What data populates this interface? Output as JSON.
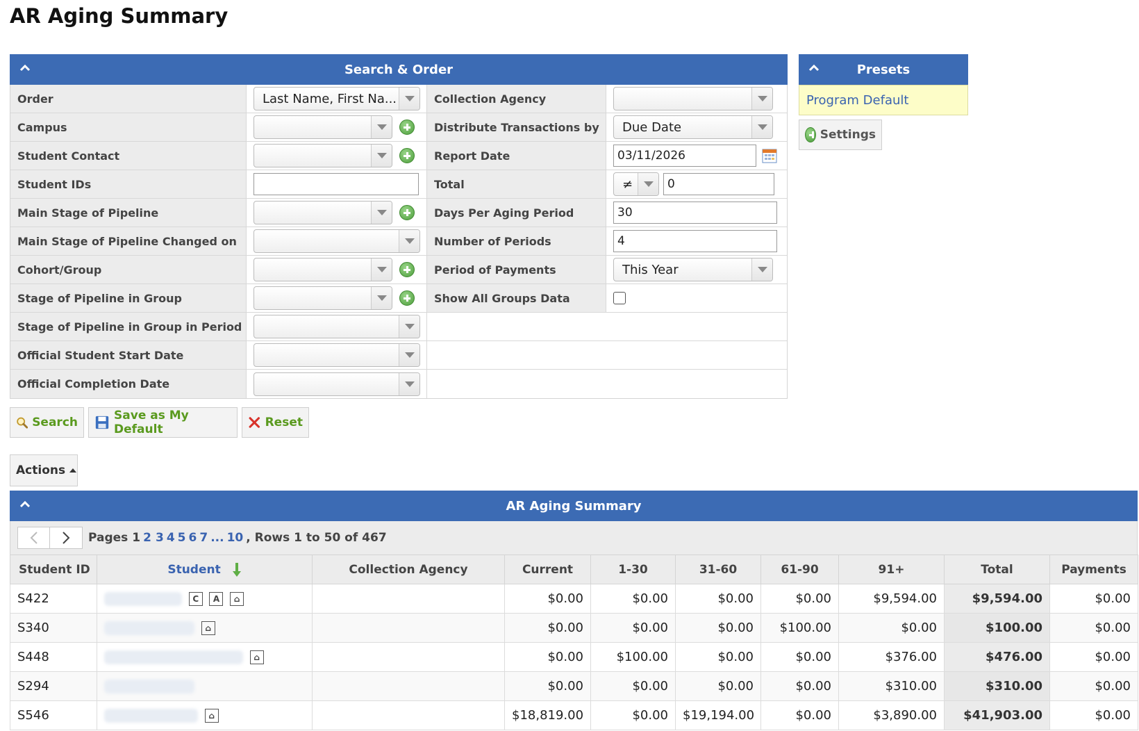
{
  "page": {
    "title": "AR Aging Summary"
  },
  "search_panel": {
    "title": "Search & Order",
    "left_fields": [
      {
        "label": "Order",
        "value": "Last Name, First Na..."
      },
      {
        "label": "Campus",
        "value": ""
      },
      {
        "label": "Student Contact",
        "value": ""
      },
      {
        "label": "Student IDs",
        "value": ""
      },
      {
        "label": "Main Stage of Pipeline",
        "value": ""
      },
      {
        "label": "Main Stage of Pipeline Changed on",
        "value": ""
      },
      {
        "label": "Cohort/Group",
        "value": ""
      },
      {
        "label": "Stage of Pipeline in Group",
        "value": ""
      },
      {
        "label": "Stage of Pipeline in Group in Period",
        "value": ""
      },
      {
        "label": "Official Student Start Date",
        "value": ""
      },
      {
        "label": "Official Completion Date",
        "value": ""
      }
    ],
    "right_fields": [
      {
        "label": "Collection Agency",
        "value": ""
      },
      {
        "label": "Distribute Transactions by",
        "value": "Due Date"
      },
      {
        "label": "Report Date",
        "value": "03/11/2026"
      },
      {
        "label": "Total",
        "operator": "≠",
        "value": "0"
      },
      {
        "label": "Days Per Aging Period",
        "value": "30"
      },
      {
        "label": "Number of Periods",
        "value": "4"
      },
      {
        "label": "Period of Payments",
        "value": "This Year"
      },
      {
        "label": "Show All Groups Data",
        "checked": false
      }
    ]
  },
  "buttons": {
    "search": "Search",
    "save_default": "Save as My Default",
    "reset": "Reset",
    "actions": "Actions",
    "settings": "Settings"
  },
  "presets": {
    "title": "Presets",
    "items": [
      "Program Default"
    ]
  },
  "results": {
    "title": "AR Aging Summary",
    "pager": {
      "pages_label": "Pages",
      "current_page": "1",
      "pages": [
        "2",
        "3",
        "4",
        "5",
        "6",
        "7",
        "...",
        "10"
      ],
      "rows_info": ", Rows 1 to 50 of 467"
    },
    "columns": [
      "Student ID",
      "Student",
      "Collection Agency",
      "Current",
      "1-30",
      "31-60",
      "61-90",
      "91+",
      "Total",
      "Payments"
    ],
    "rows": [
      {
        "id": "S422",
        "current": "$0.00",
        "d1_30": "$0.00",
        "d31_60": "$0.00",
        "d61_90": "$0.00",
        "d91": "$9,594.00",
        "total": "$9,594.00",
        "payments": "$0.00"
      },
      {
        "id": "S340",
        "current": "$0.00",
        "d1_30": "$0.00",
        "d31_60": "$0.00",
        "d61_90": "$100.00",
        "d91": "$0.00",
        "total": "$100.00",
        "payments": "$0.00"
      },
      {
        "id": "S448",
        "current": "$0.00",
        "d1_30": "$100.00",
        "d31_60": "$0.00",
        "d61_90": "$0.00",
        "d91": "$376.00",
        "total": "$476.00",
        "payments": "$0.00"
      },
      {
        "id": "S294",
        "current": "$0.00",
        "d1_30": "$0.00",
        "d31_60": "$0.00",
        "d61_90": "$0.00",
        "d91": "$310.00",
        "total": "$310.00",
        "payments": "$0.00"
      },
      {
        "id": "S546",
        "current": "$18,819.00",
        "d1_30": "$0.00",
        "d31_60": "$19,194.00",
        "d61_90": "$0.00",
        "d91": "$3,890.00",
        "total": "$41,903.00",
        "payments": "$0.00"
      }
    ],
    "row_icons": [
      [
        "C",
        "A",
        "house"
      ],
      [
        "house"
      ],
      [
        "house"
      ],
      [],
      [
        "house"
      ]
    ]
  },
  "colors": {
    "header_blue": "#3c6bb4",
    "link_blue": "#3a63b0",
    "button_green": "#5a9a1e",
    "preset_bg": "#fdfdc8"
  }
}
